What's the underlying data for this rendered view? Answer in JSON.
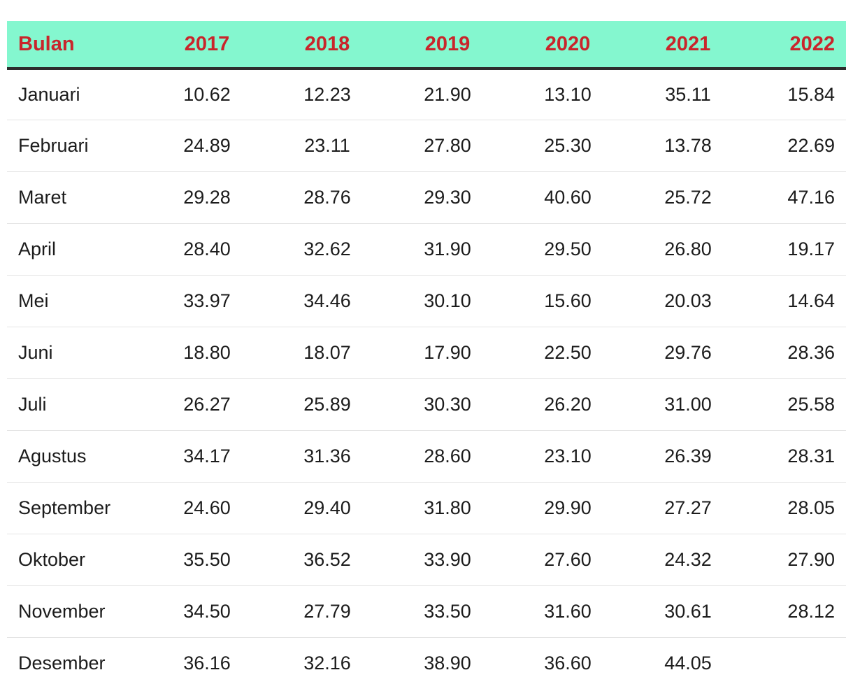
{
  "table": {
    "headers": [
      "Bulan",
      "2017",
      "2018",
      "2019",
      "2020",
      "2021",
      "2022"
    ],
    "rows": [
      [
        "Januari",
        "10.62",
        "12.23",
        "21.90",
        "13.10",
        "35.11",
        "15.84"
      ],
      [
        "Februari",
        "24.89",
        "23.11",
        "27.80",
        "25.30",
        "13.78",
        "22.69"
      ],
      [
        "Maret",
        "29.28",
        "28.76",
        "29.30",
        "40.60",
        "25.72",
        "47.16"
      ],
      [
        "April",
        "28.40",
        "32.62",
        "31.90",
        "29.50",
        "26.80",
        "19.17"
      ],
      [
        "Mei",
        "33.97",
        "34.46",
        "30.10",
        "15.60",
        "20.03",
        "14.64"
      ],
      [
        "Juni",
        "18.80",
        "18.07",
        "17.90",
        "22.50",
        "29.76",
        "28.36"
      ],
      [
        "Juli",
        "26.27",
        "25.89",
        "30.30",
        "26.20",
        "31.00",
        "25.58"
      ],
      [
        "Agustus",
        "34.17",
        "31.36",
        "28.60",
        "23.10",
        "26.39",
        "28.31"
      ],
      [
        "September",
        "24.60",
        "29.40",
        "31.80",
        "29.90",
        "27.27",
        "28.05"
      ],
      [
        "Oktober",
        "35.50",
        "36.52",
        "33.90",
        "27.60",
        "24.32",
        "27.90"
      ],
      [
        "November",
        "34.50",
        "27.79",
        "33.50",
        "31.60",
        "30.61",
        "28.12"
      ],
      [
        "Desember",
        "36.16",
        "32.16",
        "38.90",
        "36.60",
        "44.05",
        ""
      ]
    ]
  },
  "colors": {
    "header_bg": "#84f7cf",
    "header_text": "#c9252b",
    "body_text": "#1c1c1c"
  }
}
